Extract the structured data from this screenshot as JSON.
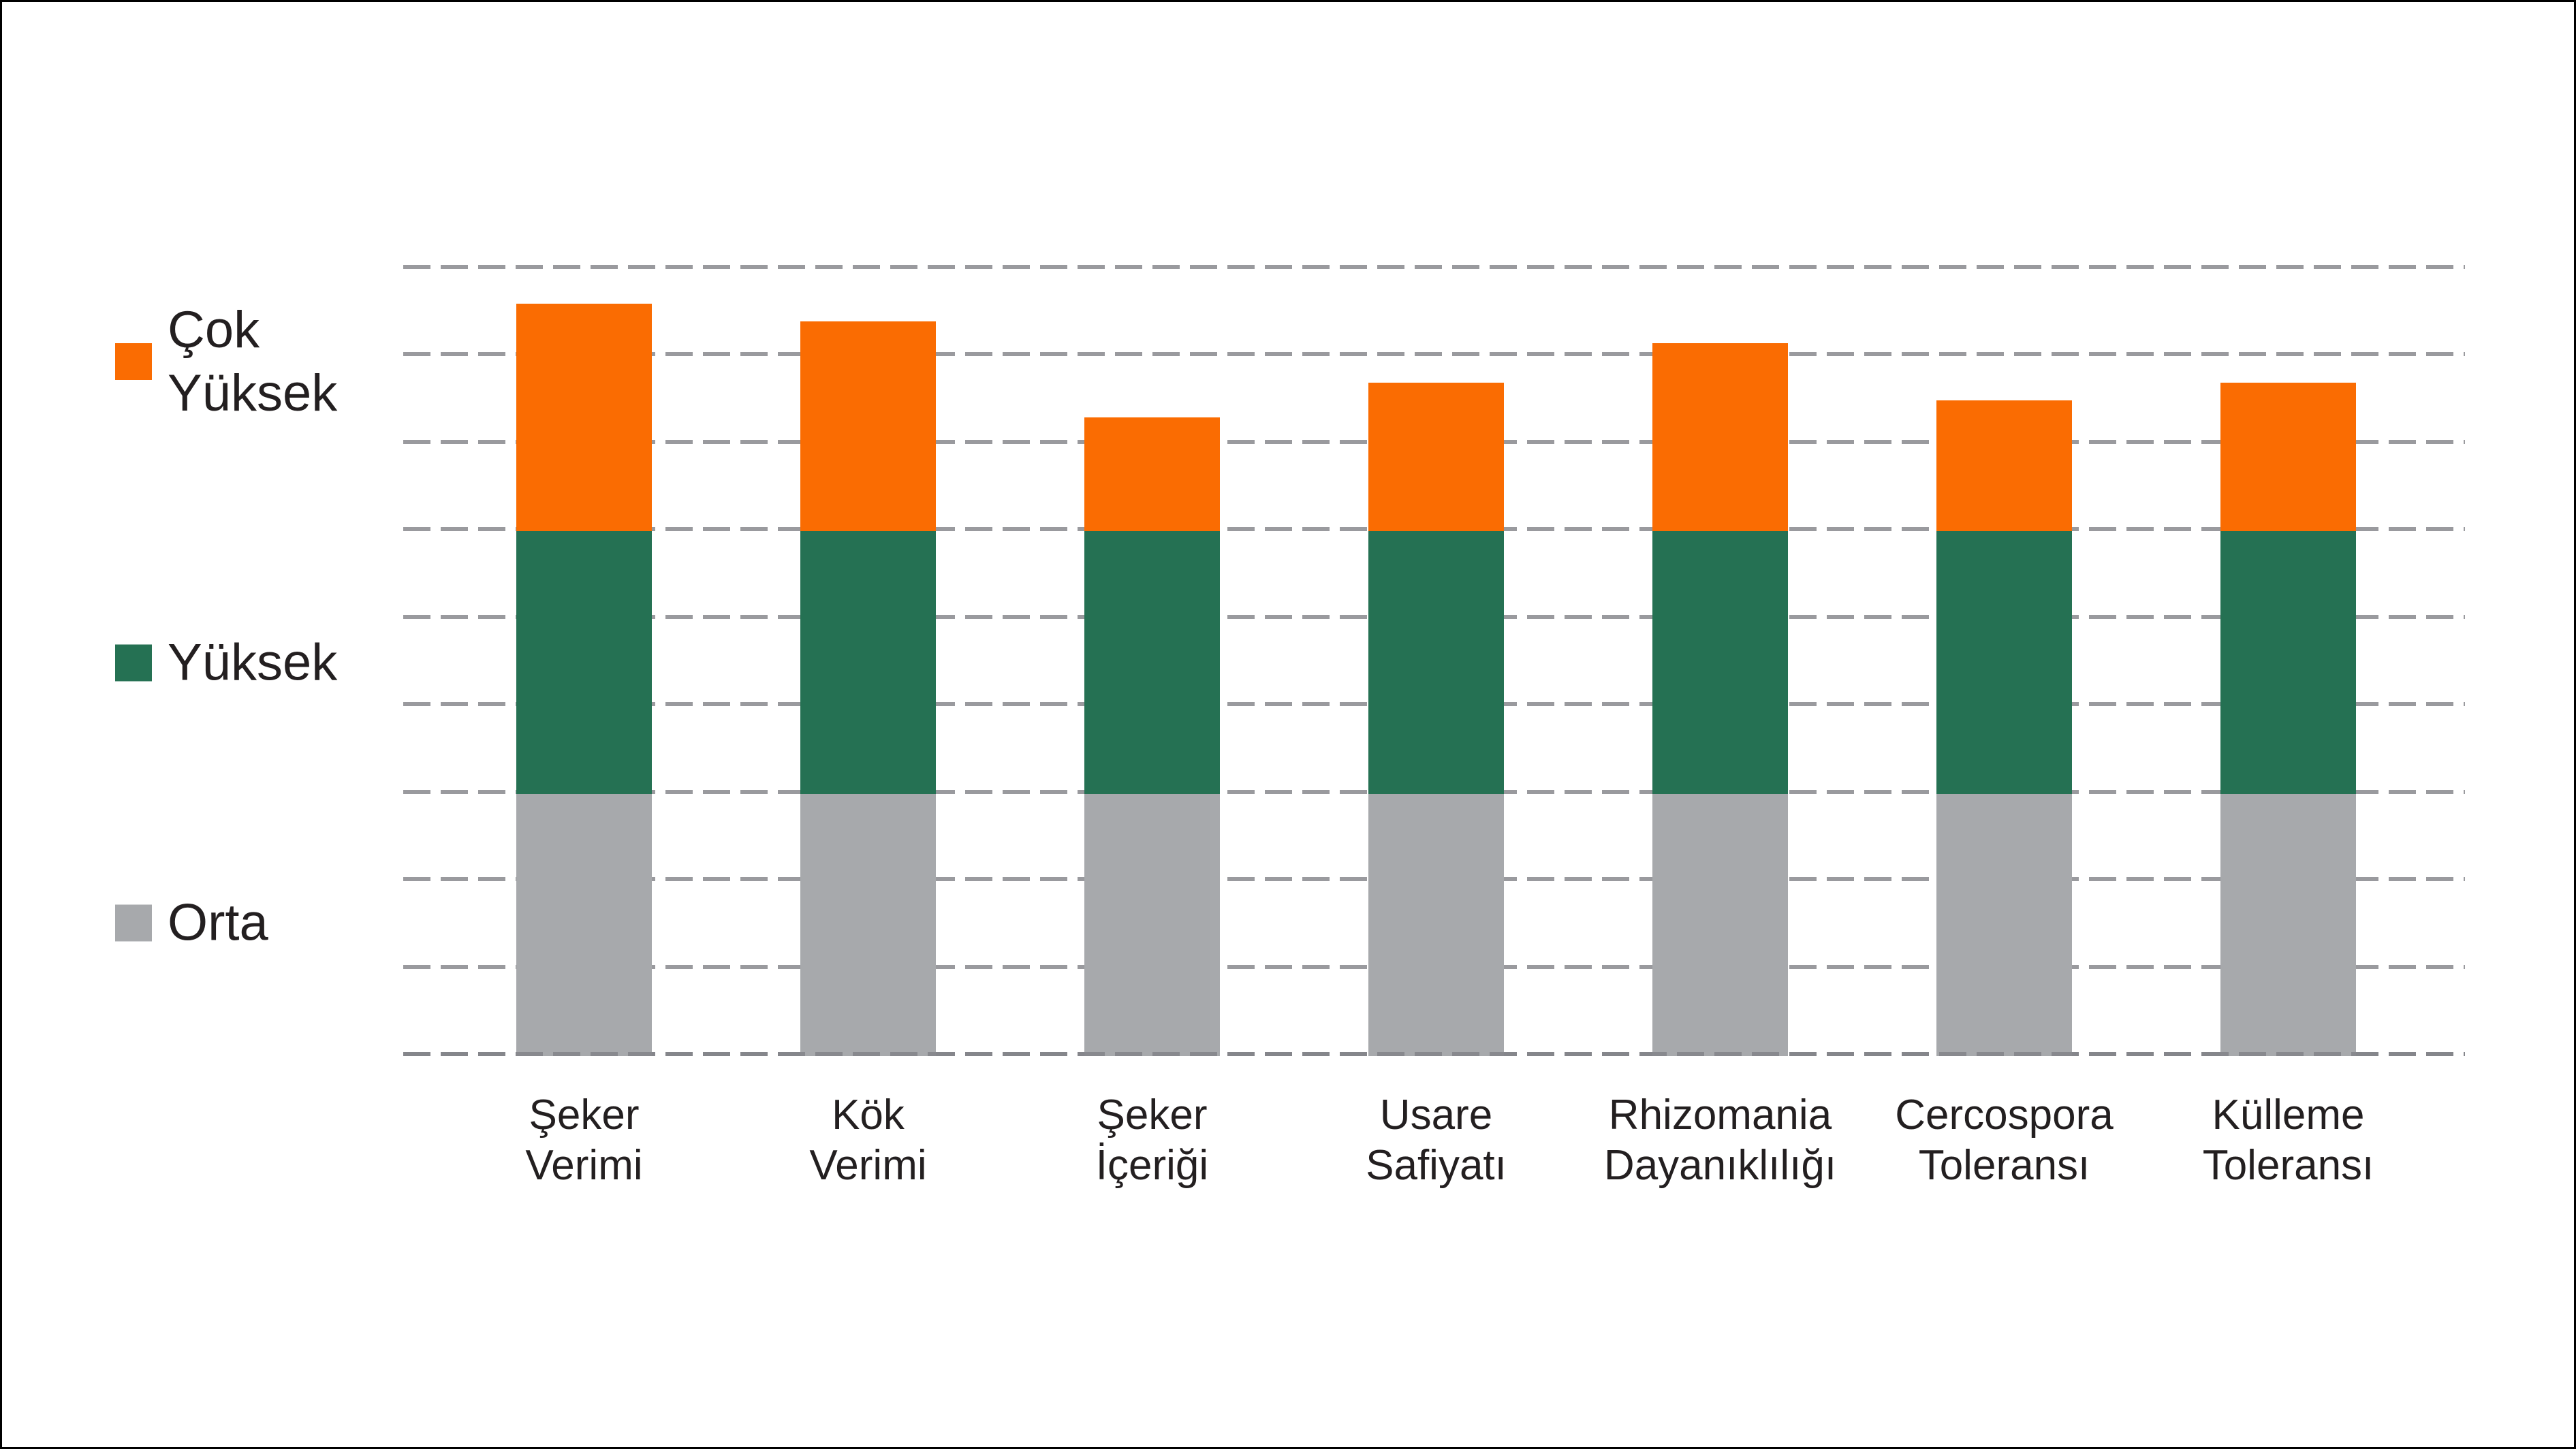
{
  "chart_data": {
    "type": "bar",
    "stacked": true,
    "title": "",
    "xlabel": "",
    "ylabel": "",
    "categories": [
      [
        "Şeker",
        "Verimi"
      ],
      [
        "Kök",
        "Verimi"
      ],
      [
        "Şeker",
        "İçeriği"
      ],
      [
        "Usare",
        "Safiyatı"
      ],
      [
        "Rhizomania",
        "Dayanıklılığı"
      ],
      [
        "Cercospora",
        "Toleransı"
      ],
      [
        "Külleme",
        "Toleransı"
      ]
    ],
    "series": [
      {
        "name": "Orta",
        "color": "#A7A9AC",
        "values": [
          3,
          3,
          3,
          3,
          3,
          3,
          3
        ]
      },
      {
        "name": "Yüksek",
        "color": "#257153",
        "values": [
          3,
          3,
          3,
          3,
          3,
          3,
          3
        ]
      },
      {
        "name": "Çok Yüksek",
        "color": "#FA6C02",
        "values": [
          2.6,
          2.4,
          1.3,
          1.7,
          2.15,
          1.5,
          1.7
        ]
      }
    ],
    "totals": [
      8.6,
      8.4,
      7.3,
      7.7,
      8.15,
      7.5,
      7.7
    ],
    "ylim": [
      0,
      9
    ],
    "gridline_interval": 1,
    "gridline_count": 10,
    "grid": "dashed",
    "legend_position": "left"
  },
  "legend": {
    "items": [
      {
        "label": "Çok Yüksek",
        "color": "#FA6C02"
      },
      {
        "label": "Yüksek",
        "color": "#257153"
      },
      {
        "label": "Orta",
        "color": "#A7A9AC"
      }
    ]
  },
  "colors": {
    "background": "#FFFFFF",
    "frame": "#000000",
    "gridline": "#A5A6AA",
    "text": "#231F20",
    "orange": "#FA6C02",
    "green": "#257153",
    "gray": "#A7A9AC"
  }
}
